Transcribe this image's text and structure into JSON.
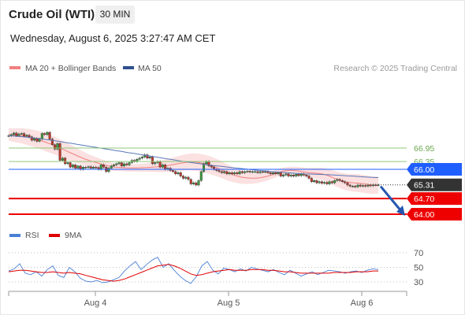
{
  "header": {
    "title": "Crude Oil (WTI)",
    "interval": "30 MIN",
    "datetime": "Wednesday, August 6, 2025 3:27:47 AM CET"
  },
  "legend": {
    "ma20_label": "MA 20 + Bollinger Bands",
    "ma20_color": "#f08080",
    "ma50_label": "MA 50",
    "ma50_color": "#2f4f8f",
    "credit": "Research © 2025 Trading Central"
  },
  "rsi_legend": {
    "rsi_label": "RSI",
    "rsi_color": "#4a7fd6",
    "ma_label": "9MA",
    "ma_color": "#e00000"
  },
  "chart_data": {
    "type": "candlestick",
    "price_axis": {
      "min": 63.6,
      "max": 67.8
    },
    "levels": [
      {
        "value": 66.95,
        "label": "66.95",
        "style": "green-line",
        "color": "#8fc97a"
      },
      {
        "value": 66.35,
        "label": "66.35",
        "style": "green-line",
        "color": "#8fc97a"
      },
      {
        "value": 66.0,
        "label": "66.00",
        "style": "blue-line",
        "color": "#1f5eff"
      },
      {
        "value": 65.31,
        "label": "65.31",
        "style": "last-price",
        "color": "#333333"
      },
      {
        "value": 64.7,
        "label": "64.70",
        "style": "red-line",
        "color": "#ee0000"
      },
      {
        "value": 64.0,
        "label": "64.00",
        "style": "red-line",
        "color": "#ee0000"
      }
    ],
    "x_labels": [
      "Aug 4",
      "Aug 5",
      "Aug 6"
    ],
    "candle_colors": {
      "up": "#3c9a3c",
      "down": "#c0392b"
    },
    "closes": [
      67.5,
      67.55,
      67.62,
      67.5,
      67.58,
      67.6,
      67.48,
      67.52,
      67.45,
      67.3,
      67.38,
      67.25,
      67.35,
      67.6,
      67.55,
      67.65,
      67.35,
      67.1,
      66.9,
      67.15,
      66.4,
      66.5,
      66.25,
      66.3,
      66.1,
      66.2,
      66.05,
      66.15,
      66.0,
      66.1,
      66.08,
      66.12,
      66.05,
      66.1,
      66.08,
      66.0,
      66.2,
      66.1,
      65.9,
      66.05,
      66.15,
      66.2,
      66.25,
      66.3,
      66.15,
      66.25,
      66.2,
      66.3,
      66.4,
      66.35,
      66.45,
      66.5,
      66.55,
      66.65,
      66.5,
      66.55,
      66.25,
      66.3,
      66.35,
      66.1,
      66.2,
      66.0,
      66.05,
      65.95,
      65.9,
      65.8,
      65.85,
      65.7,
      65.6,
      65.65,
      65.55,
      65.35,
      65.4,
      65.3,
      65.5,
      65.9,
      66.25,
      66.35,
      66.15,
      66.1,
      66.0,
      65.95,
      65.9,
      65.85,
      65.9,
      65.8,
      65.85,
      65.8,
      65.85,
      65.8,
      65.9,
      65.85,
      65.9,
      65.92,
      65.88,
      65.9,
      65.9,
      65.85,
      65.9,
      65.88,
      65.9,
      65.85,
      65.8,
      65.85,
      65.8,
      65.85,
      65.7,
      65.75,
      65.8,
      65.7,
      65.75,
      65.7,
      65.78,
      65.72,
      65.8,
      65.75,
      65.7,
      65.6,
      65.45,
      65.5,
      65.4,
      65.45,
      65.38,
      65.42,
      65.35,
      65.45,
      65.4,
      65.5,
      65.55,
      65.5,
      65.45,
      65.4,
      65.3,
      65.25,
      65.25,
      65.22,
      65.3,
      65.25,
      65.28,
      65.25,
      65.3,
      65.27,
      65.31,
      65.3,
      65.31
    ],
    "ma50": [
      67.5,
      67.48,
      67.46,
      67.43,
      67.4,
      67.37,
      67.33,
      67.29,
      67.25,
      67.2,
      67.16,
      67.11,
      67.07,
      67.02,
      66.98,
      66.93,
      66.89,
      66.84,
      66.8,
      66.75,
      66.71,
      66.66,
      66.62,
      66.57,
      66.53,
      66.48,
      66.44,
      66.39,
      66.35,
      66.31,
      66.27,
      66.23,
      66.19,
      66.16,
      66.13,
      66.1,
      66.07,
      66.04,
      66.01,
      65.98,
      65.95,
      65.93,
      65.9,
      65.88,
      65.86,
      65.84,
      65.82,
      65.8,
      65.79,
      65.78,
      65.77,
      65.76,
      65.75,
      65.73,
      65.71,
      65.7,
      65.68,
      65.66,
      65.64,
      65.63
    ],
    "ma20": [
      67.55,
      67.52,
      67.5,
      67.45,
      67.38,
      67.3,
      67.2,
      67.1,
      66.98,
      66.85,
      66.72,
      66.6,
      66.48,
      66.38,
      66.3,
      66.22,
      66.15,
      66.1,
      66.08,
      66.06,
      66.06,
      66.07,
      66.08,
      66.1,
      66.12,
      66.15,
      66.2,
      66.25,
      66.3,
      66.33,
      66.32,
      66.27,
      66.2,
      66.1,
      65.98,
      65.85,
      65.74,
      65.66,
      65.62,
      65.6,
      65.62,
      65.67,
      65.75,
      65.85,
      65.93,
      65.96,
      65.94,
      65.89,
      65.85,
      65.83,
      65.8,
      65.72,
      65.6,
      65.5,
      65.43,
      65.4,
      65.38,
      65.34,
      65.3,
      65.3
    ],
    "rsi_axis": {
      "ticks": [
        30,
        50,
        70
      ],
      "min": 25,
      "max": 75
    },
    "rsi": [
      45,
      48,
      55,
      42,
      40,
      44,
      38,
      47,
      52,
      39,
      36,
      50,
      44,
      35,
      31,
      30,
      32,
      29,
      30,
      33,
      36,
      45,
      52,
      58,
      47,
      54,
      60,
      64,
      50,
      55,
      46,
      38,
      32,
      28,
      37,
      52,
      58,
      46,
      41,
      49,
      47,
      44,
      48,
      45,
      50,
      48,
      46,
      44,
      47,
      43,
      40,
      46,
      42,
      38,
      41,
      44,
      40,
      43,
      46,
      45,
      44,
      42,
      44,
      45,
      43,
      46,
      48,
      47
    ],
    "rsi_ma": [
      44,
      45,
      46,
      46,
      45,
      44,
      43,
      43,
      44,
      43,
      42,
      43,
      42,
      41,
      39,
      37,
      35,
      33,
      32,
      31,
      32,
      34,
      37,
      40,
      43,
      46,
      49,
      52,
      53,
      54,
      52,
      49,
      45,
      41,
      39,
      40,
      42,
      44,
      45,
      46,
      47,
      46,
      46,
      46,
      47,
      47,
      47,
      46,
      46,
      45,
      44,
      44,
      43,
      42,
      42,
      42,
      42,
      42,
      42,
      43,
      43,
      43,
      43,
      44,
      44,
      44,
      45,
      45
    ]
  }
}
